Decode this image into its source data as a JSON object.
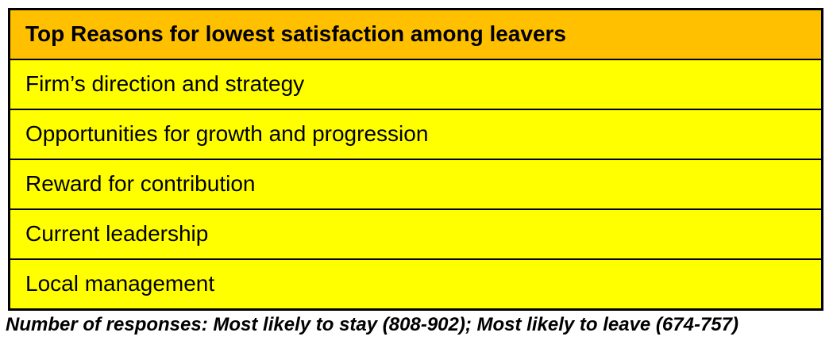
{
  "colors": {
    "header_bg": "#FFC000",
    "row_bg": "#FFFF00",
    "border": "#000000",
    "text": "#000000",
    "page_bg": "#FFFFFF"
  },
  "table": {
    "header": "Top Reasons for lowest satisfaction among leavers",
    "rows": [
      "Firm’s direction and strategy",
      "Opportunities for growth and progression",
      "Reward for contribution",
      "Current leadership",
      "Local management"
    ]
  },
  "footnote": "Number of responses: Most likely to stay (808-902); Most likely to leave (674-757)"
}
